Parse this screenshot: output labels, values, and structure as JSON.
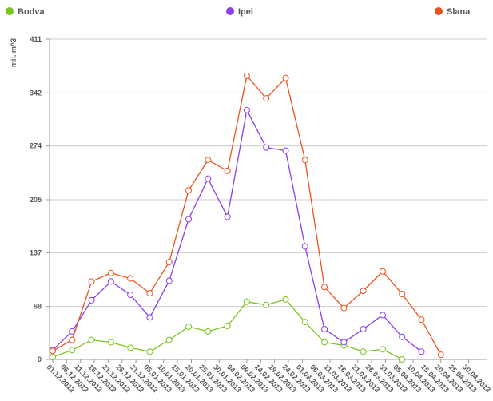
{
  "chart_data": {
    "type": "line",
    "axis_label": "mil. m^3",
    "x": [
      0,
      7,
      14,
      21,
      28,
      35,
      42,
      49,
      56,
      63,
      70,
      77,
      84,
      91,
      98,
      105,
      112,
      119,
      126,
      133,
      140
    ],
    "series": [
      {
        "name": "Bodva",
        "color": "#7ac41e",
        "values": [
          3,
          12,
          25,
          22,
          15,
          10,
          25,
          42,
          36,
          43,
          74,
          70,
          77,
          48,
          22,
          18,
          10,
          13,
          0,
          null,
          null
        ]
      },
      {
        "name": "Ipel",
        "color": "#8a3ff0",
        "values": [
          12,
          36,
          76,
          100,
          83,
          54,
          101,
          180,
          232,
          183,
          320,
          272,
          268,
          145,
          39,
          22,
          39,
          57,
          29,
          10,
          null
        ]
      },
      {
        "name": "Slana",
        "color": "#f0501a",
        "values": [
          11,
          25,
          100,
          111,
          104,
          85,
          125,
          217,
          256,
          242,
          364,
          335,
          361,
          256,
          93,
          66,
          88,
          113,
          84,
          51,
          6
        ]
      }
    ],
    "xlim": [
      0,
      150
    ],
    "xticks": [
      {
        "value": 0,
        "label": "01.12.2012"
      },
      {
        "value": 5,
        "label": "06.12.2012"
      },
      {
        "value": 10,
        "label": "11.12.2012"
      },
      {
        "value": 15,
        "label": "16.12.2012"
      },
      {
        "value": 20,
        "label": "21.12.2012"
      },
      {
        "value": 25,
        "label": "26.12.2012"
      },
      {
        "value": 30,
        "label": "31.12.2012"
      },
      {
        "value": 35,
        "label": "05.01.2013"
      },
      {
        "value": 40,
        "label": "10.01.2013"
      },
      {
        "value": 45,
        "label": "15.01.2013"
      },
      {
        "value": 50,
        "label": "20.01.2013"
      },
      {
        "value": 55,
        "label": "25.01.2013"
      },
      {
        "value": 60,
        "label": "30.01.2013"
      },
      {
        "value": 65,
        "label": "04.02.2013"
      },
      {
        "value": 70,
        "label": "09.02.2013"
      },
      {
        "value": 75,
        "label": "14.02.2013"
      },
      {
        "value": 80,
        "label": "19.02.2013"
      },
      {
        "value": 85,
        "label": "24.02.2013"
      },
      {
        "value": 90,
        "label": "01.03.2013"
      },
      {
        "value": 95,
        "label": "06.03.2013"
      },
      {
        "value": 100,
        "label": "11.03.2013"
      },
      {
        "value": 105,
        "label": "16.03.2013"
      },
      {
        "value": 110,
        "label": "21.03.2013"
      },
      {
        "value": 115,
        "label": "26.03.2013"
      },
      {
        "value": 120,
        "label": "31.03.2013"
      },
      {
        "value": 125,
        "label": "05.04.2013"
      },
      {
        "value": 130,
        "label": "10.04.2013"
      },
      {
        "value": 135,
        "label": "15.04.2013"
      },
      {
        "value": 140,
        "label": "20.04.2013"
      },
      {
        "value": 145,
        "label": "25.04.2013"
      },
      {
        "value": 150,
        "label": "30.04.2013"
      }
    ],
    "ylim": [
      0,
      411
    ],
    "yticks": [
      0,
      68,
      137,
      205,
      274,
      342,
      411
    ],
    "grid": true
  }
}
